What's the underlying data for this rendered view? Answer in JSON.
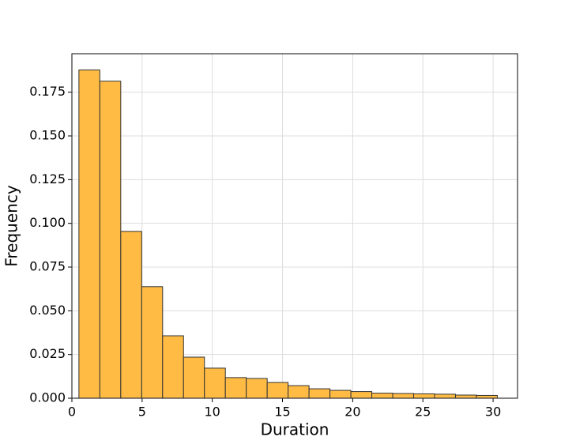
{
  "chart_data": {
    "type": "histogram",
    "x_label": "Duration",
    "y_label": "Frequency",
    "bins": [
      0.5,
      1.99,
      3.48,
      4.97,
      6.46,
      7.95,
      9.44,
      10.93,
      12.42,
      13.91,
      15.4,
      16.89,
      18.38,
      19.87,
      21.36,
      22.85,
      24.34,
      25.83,
      27.32,
      28.81,
      30.3
    ],
    "values": [
      0.1877,
      0.1813,
      0.0954,
      0.0638,
      0.0357,
      0.0235,
      0.0172,
      0.0118,
      0.0113,
      0.009,
      0.0072,
      0.0054,
      0.0045,
      0.0038,
      0.0029,
      0.0027,
      0.0025,
      0.0023,
      0.0018,
      0.0016
    ],
    "color": "#ffbb44",
    "edge_color": "#333333",
    "xlim": [
      0,
      31.74
    ],
    "xticks": [
      0,
      5,
      10,
      15,
      20,
      25,
      30
    ],
    "ylim": [
      0,
      0.197
    ],
    "yticks": [
      {
        "value": 0,
        "label": "0.000"
      },
      {
        "value": 0.025,
        "label": "0.025"
      },
      {
        "value": 0.05,
        "label": "0.050"
      },
      {
        "value": 0.075,
        "label": "0.075"
      },
      {
        "value": 0.1,
        "label": "0.100"
      },
      {
        "value": 0.125,
        "label": "0.125"
      },
      {
        "value": 0.15,
        "label": "0.150"
      },
      {
        "value": 0.175,
        "label": "0.175"
      }
    ],
    "grid": true
  }
}
